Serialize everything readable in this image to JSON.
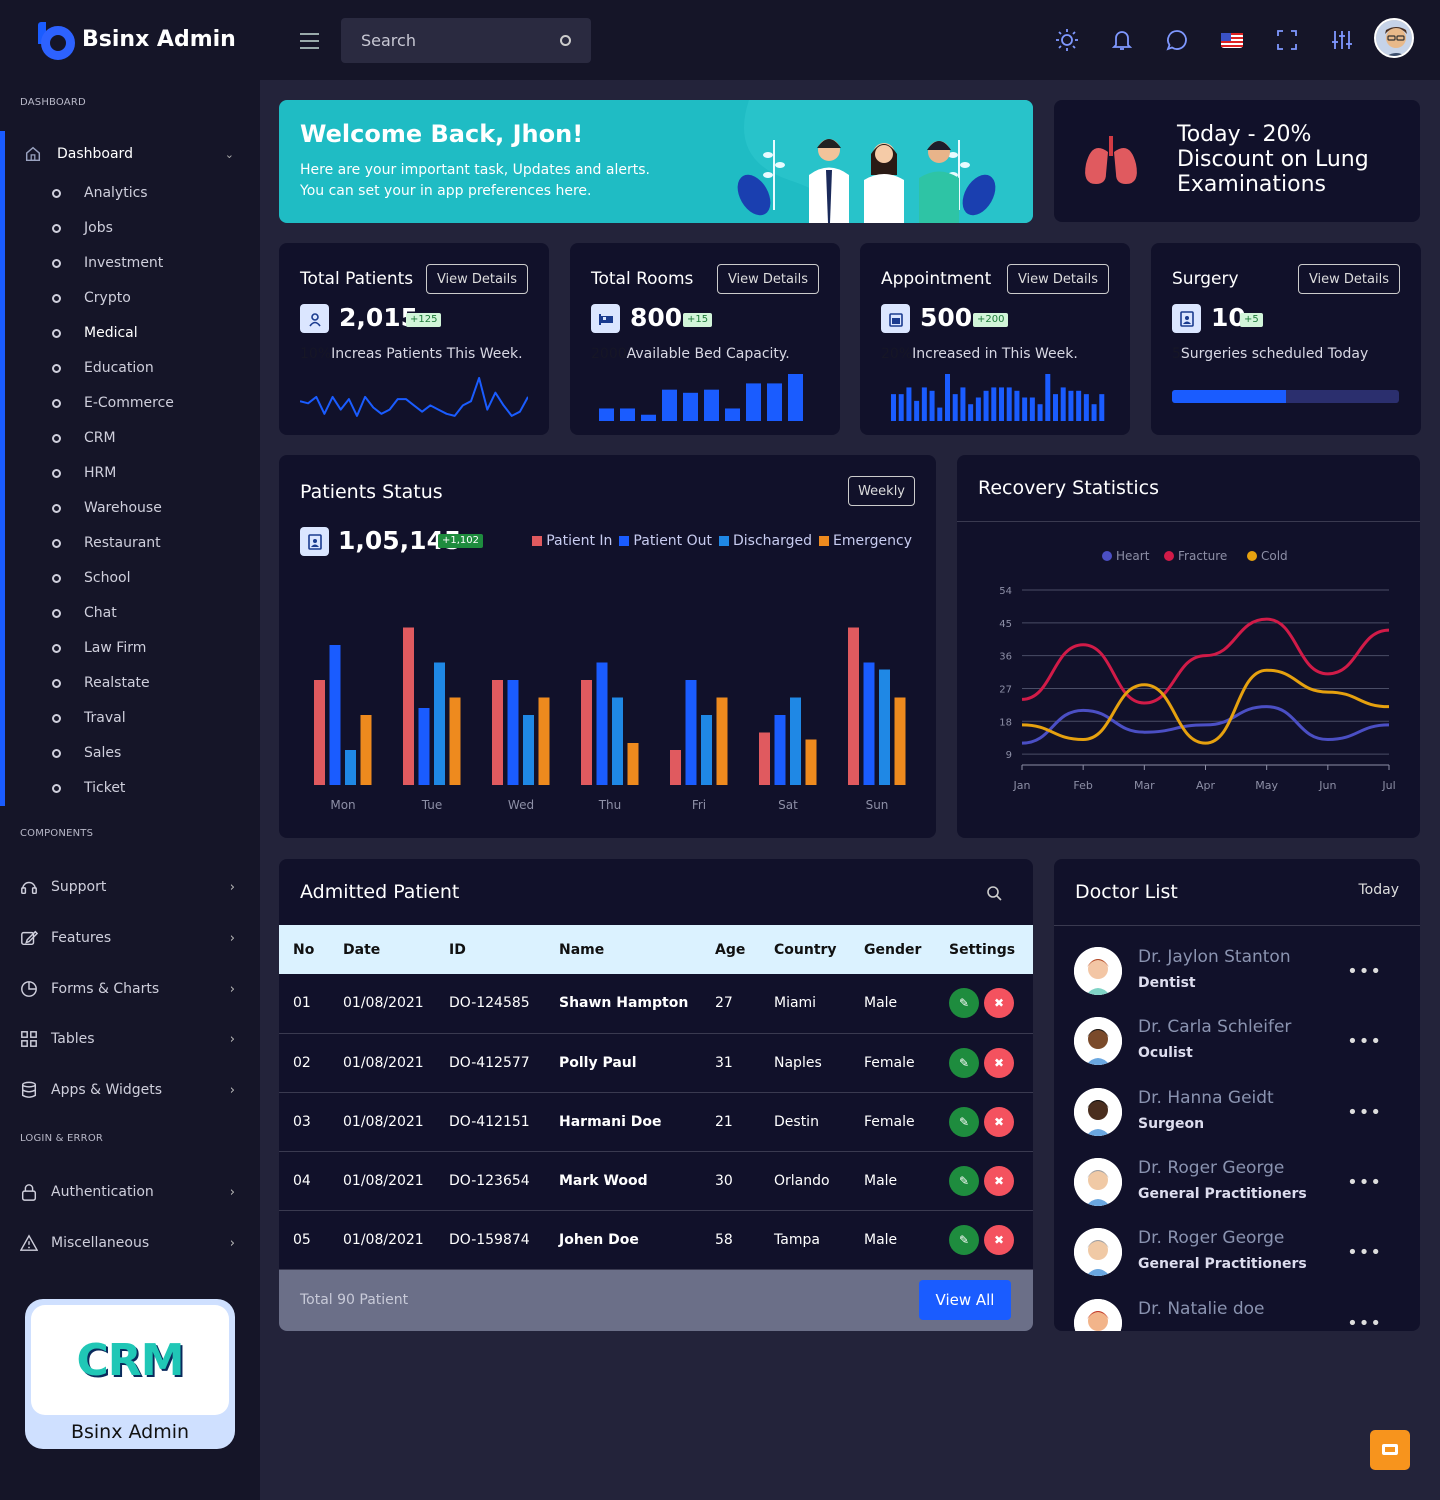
{
  "app": {
    "name": "Bsinx Admin"
  },
  "sidebar": {
    "section_dashboard": "DASHBOARD",
    "dashboard_label": "Dashboard",
    "items": [
      "Analytics",
      "Jobs",
      "Investment",
      "Crypto",
      "Medical",
      "Education",
      "E-Commerce",
      "CRM",
      "HRM",
      "Warehouse",
      "Restaurant",
      "School",
      "Chat",
      "Law Firm",
      "Realstate",
      "Traval",
      "Sales",
      "Ticket"
    ],
    "section_components": "COMPONENTS",
    "components": [
      "Support",
      "Features",
      "Forms & Charts",
      "Tables",
      "Apps & Widgets"
    ],
    "section_login": "LOGIN & ERROR",
    "login": [
      "Authentication",
      "Miscellaneous"
    ],
    "promo_logo": "CRM",
    "promo_name": "Bsinx Admin"
  },
  "topbar": {
    "search_placeholder": "Search"
  },
  "welcome": {
    "title": "Welcome Back, Jhon!",
    "line1": "Here are your important task, Updates and alerts.",
    "line2": "You can set your in app preferences here."
  },
  "promo": {
    "text": "Today - 20% Discount on Lung Examinations"
  },
  "stats": [
    {
      "title": "Total Patients",
      "button": "View Details",
      "value": "2,015",
      "badge": "+125",
      "pre": "10%",
      "desc": "Increas Patients This Week."
    },
    {
      "title": "Total Rooms",
      "button": "View Details",
      "value": "800",
      "badge": "+15",
      "pre": "2000",
      "desc": "Available Bed Capacity."
    },
    {
      "title": "Appointment",
      "button": "View Details",
      "value": "500",
      "badge": "+200",
      "pre": "20%",
      "desc": "Increased in This Week."
    },
    {
      "title": "Surgery",
      "button": "View Details",
      "value": "10",
      "badge": "+5",
      "pre": "5",
      "desc": "Surgeries scheduled Today",
      "progress": 0.5
    }
  ],
  "patients_status": {
    "title": "Patients Status",
    "button": "Weekly",
    "value": "1,05,145",
    "badge": "+1,102"
  },
  "recovery": {
    "title": "Recovery Statistics"
  },
  "chart_data": [
    {
      "type": "bar",
      "title": "Patients Status",
      "categories": [
        "Mon",
        "Tue",
        "Wed",
        "Thu",
        "Fri",
        "Sat",
        "Sun"
      ],
      "series": [
        {
          "name": "Patient In",
          "color": "#e05a5f",
          "values": [
            60,
            90,
            60,
            60,
            20,
            30,
            90
          ]
        },
        {
          "name": "Patient Out",
          "color": "#1a5cff",
          "values": [
            80,
            44,
            60,
            70,
            60,
            40,
            70
          ]
        },
        {
          "name": "Discharged",
          "color": "#1f88e5",
          "values": [
            20,
            70,
            40,
            50,
            40,
            50,
            66
          ]
        },
        {
          "name": "Emergency",
          "color": "#ee8a1e",
          "values": [
            40,
            50,
            50,
            24,
            50,
            26,
            50
          ]
        }
      ],
      "ylim": [
        0,
        100
      ],
      "legend": "top-right"
    },
    {
      "type": "line",
      "title": "Recovery Statistics",
      "categories": [
        "Jan",
        "Feb",
        "Mar",
        "Apr",
        "May",
        "Jun",
        "Jul"
      ],
      "yticks": [
        9,
        18,
        27,
        36,
        45,
        54
      ],
      "ylim": [
        6,
        54
      ],
      "legend": "top",
      "series": [
        {
          "name": "Heart",
          "color": "#4b4fc4",
          "values": [
            12,
            21,
            15,
            17,
            22,
            13,
            17
          ]
        },
        {
          "name": "Fracture",
          "color": "#d11b48",
          "values": [
            24,
            39,
            23,
            36,
            46,
            31,
            43
          ]
        },
        {
          "name": "Cold",
          "color": "#e6a10f",
          "values": [
            17,
            13,
            28,
            12,
            32,
            26,
            22
          ]
        }
      ]
    },
    {
      "type": "line",
      "title": "Total Patients",
      "values": [
        8,
        7,
        10,
        2,
        10,
        4,
        9,
        1,
        10,
        5,
        2,
        4,
        9,
        9,
        6,
        3,
        6,
        4,
        2,
        1,
        6,
        8,
        19,
        4,
        12,
        6,
        1,
        3,
        10
      ]
    },
    {
      "type": "bar",
      "title": "Total Rooms",
      "values": [
        4,
        4,
        2,
        10,
        9,
        10,
        4,
        12,
        12,
        15
      ]
    },
    {
      "type": "bar",
      "title": "Appointment",
      "values": [
        8,
        8,
        10,
        6,
        10,
        9,
        4,
        14,
        8,
        10,
        5,
        7,
        9,
        10,
        10,
        10,
        9,
        7,
        7,
        5,
        14,
        8,
        10,
        9,
        9,
        8,
        5,
        8
      ]
    }
  ],
  "admitted": {
    "title": "Admitted Patient",
    "columns": [
      "No",
      "Date",
      "ID",
      "Name",
      "Age",
      "Country",
      "Gender",
      "Settings"
    ],
    "rows": [
      [
        "01",
        "01/08/2021",
        "DO-124585",
        "Shawn Hampton",
        "27",
        "Miami",
        "Male"
      ],
      [
        "02",
        "01/08/2021",
        "DO-412577",
        "Polly Paul",
        "31",
        "Naples",
        "Female"
      ],
      [
        "03",
        "01/08/2021",
        "DO-412151",
        "Harmani Doe",
        "21",
        "Destin",
        "Female"
      ],
      [
        "04",
        "01/08/2021",
        "DO-123654",
        "Mark Wood",
        "30",
        "Orlando",
        "Male"
      ],
      [
        "05",
        "01/08/2021",
        "DO-159874",
        "Johen Doe",
        "58",
        "Tampa",
        "Male"
      ]
    ],
    "total": "Total 90 Patient",
    "view_all": "View All"
  },
  "doctors": {
    "title": "Doctor List",
    "filter": "Today",
    "list": [
      {
        "name": "Dr. Jaylon Stanton",
        "role": "Dentist"
      },
      {
        "name": "Dr. Carla Schleifer",
        "role": "Oculist"
      },
      {
        "name": "Dr. Hanna Geidt",
        "role": "Surgeon"
      },
      {
        "name": "Dr. Roger George",
        "role": "General Practitioners"
      },
      {
        "name": "Dr. Roger George",
        "role": "General Practitioners"
      },
      {
        "name": "Dr. Natalie doe",
        "role": ""
      }
    ]
  }
}
